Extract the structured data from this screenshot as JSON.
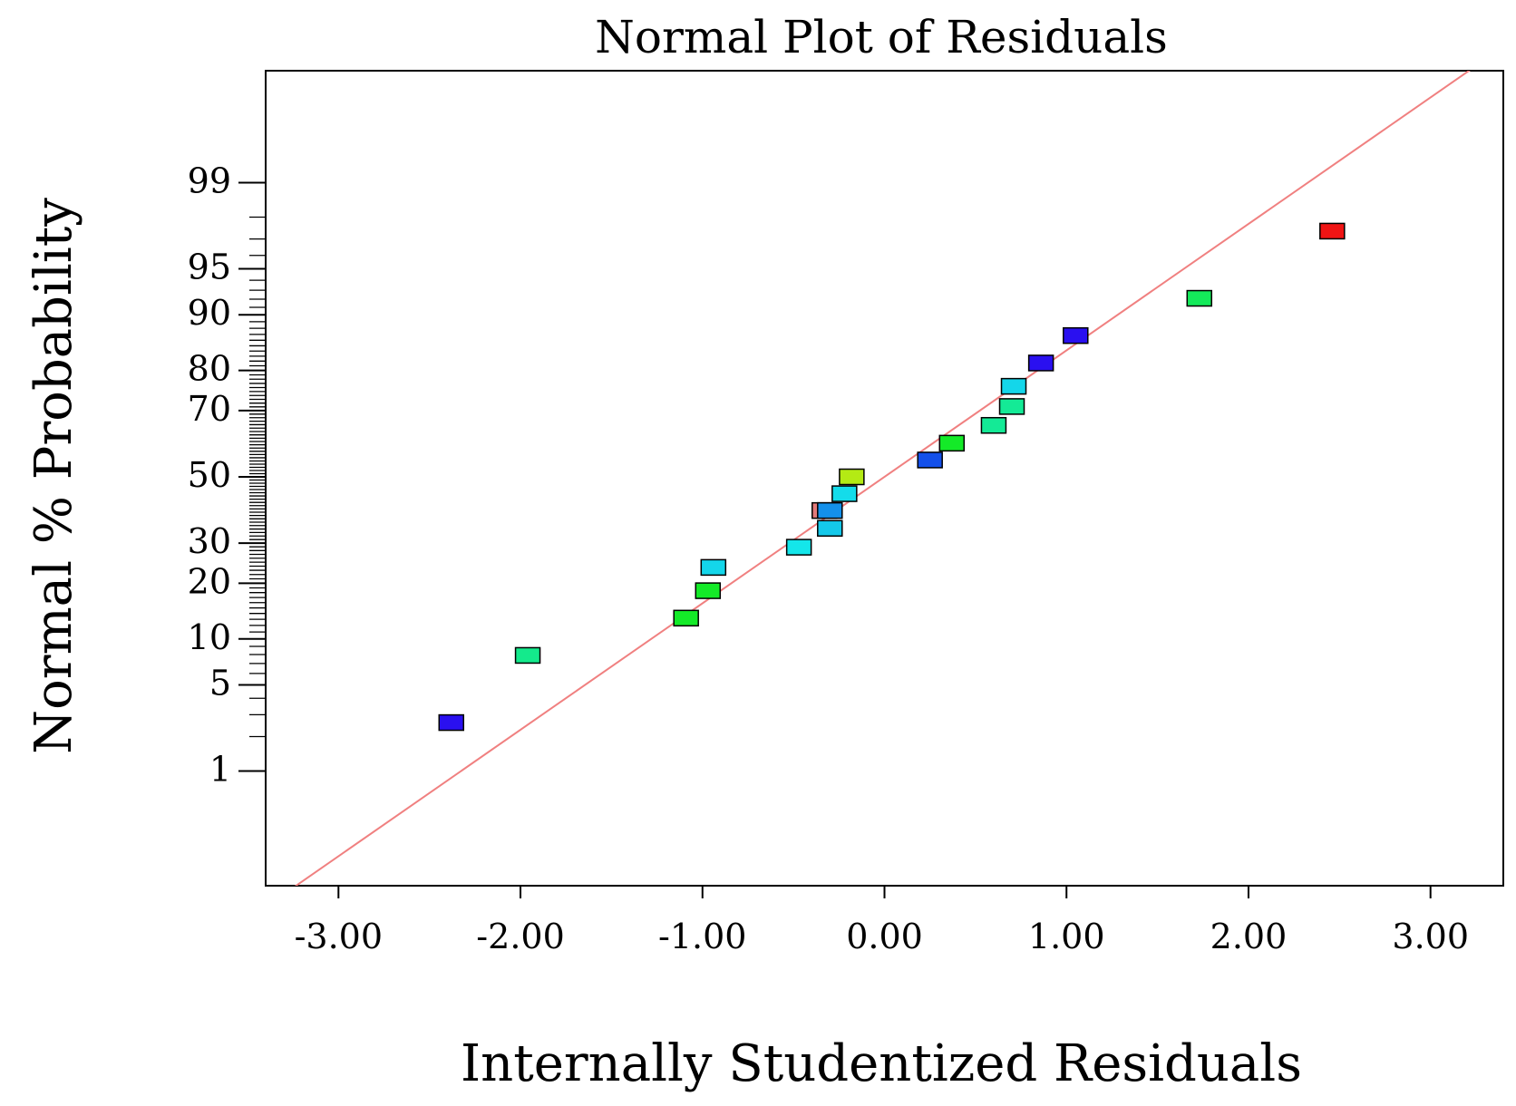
{
  "chart_data": {
    "type": "scatter",
    "title": "Normal Plot of Residuals",
    "xlabel": "Internally Studentized Residuals",
    "ylabel": "Normal % Probability",
    "xlim": [
      -3.4,
      3.4
    ],
    "x_ticks": [
      {
        "value": -3,
        "label": "-3.00"
      },
      {
        "value": -2,
        "label": "-2.00"
      },
      {
        "value": -1,
        "label": "-1.00"
      },
      {
        "value": 0,
        "label": "0.00"
      },
      {
        "value": 1,
        "label": "1.00"
      },
      {
        "value": 2,
        "label": "2.00"
      },
      {
        "value": 3,
        "label": "3.00"
      }
    ],
    "y_scale": "normal-probability",
    "y_ticks": [
      {
        "value": 1,
        "label": "1"
      },
      {
        "value": 5,
        "label": "5"
      },
      {
        "value": 10,
        "label": "10"
      },
      {
        "value": 20,
        "label": "20"
      },
      {
        "value": 30,
        "label": "30"
      },
      {
        "value": 50,
        "label": "50"
      },
      {
        "value": 70,
        "label": "70"
      },
      {
        "value": 80,
        "label": "80"
      },
      {
        "value": 90,
        "label": "90"
      },
      {
        "value": 95,
        "label": "95"
      },
      {
        "value": 99,
        "label": "99"
      }
    ],
    "reference_line": {
      "slope": 1,
      "intercept": 0,
      "color": "#f08080"
    },
    "points": [
      {
        "x": -2.38,
        "p": 2.6,
        "color": "#2a10f0"
      },
      {
        "x": -1.96,
        "p": 7.9,
        "color": "#14ea8c"
      },
      {
        "x": -1.09,
        "p": 13.2,
        "color": "#14ea28"
      },
      {
        "x": -0.97,
        "p": 18.4,
        "color": "#14ea28"
      },
      {
        "x": -0.94,
        "p": 23.7,
        "color": "#14d6ea"
      },
      {
        "x": -0.47,
        "p": 28.9,
        "color": "#14e6ea"
      },
      {
        "x": -0.3,
        "p": 34.2,
        "color": "#14c8ea"
      },
      {
        "x": -0.33,
        "p": 39.5,
        "color": "#e27a7a"
      },
      {
        "x": -0.3,
        "p": 39.5,
        "color": "#1490ea"
      },
      {
        "x": -0.22,
        "p": 44.7,
        "color": "#14dcea"
      },
      {
        "x": -0.18,
        "p": 50.0,
        "color": "#b4ea14"
      },
      {
        "x": 0.25,
        "p": 55.3,
        "color": "#1450ea"
      },
      {
        "x": 0.37,
        "p": 60.5,
        "color": "#14ea28"
      },
      {
        "x": 0.6,
        "p": 65.8,
        "color": "#14ea96"
      },
      {
        "x": 0.7,
        "p": 71.1,
        "color": "#14ea96"
      },
      {
        "x": 0.71,
        "p": 76.3,
        "color": "#14d6ea"
      },
      {
        "x": 0.86,
        "p": 81.6,
        "color": "#2a10f0"
      },
      {
        "x": 1.05,
        "p": 86.8,
        "color": "#2a10f0"
      },
      {
        "x": 1.73,
        "p": 92.1,
        "color": "#14ea5a"
      },
      {
        "x": 2.46,
        "p": 97.4,
        "color": "#f01414"
      }
    ]
  }
}
